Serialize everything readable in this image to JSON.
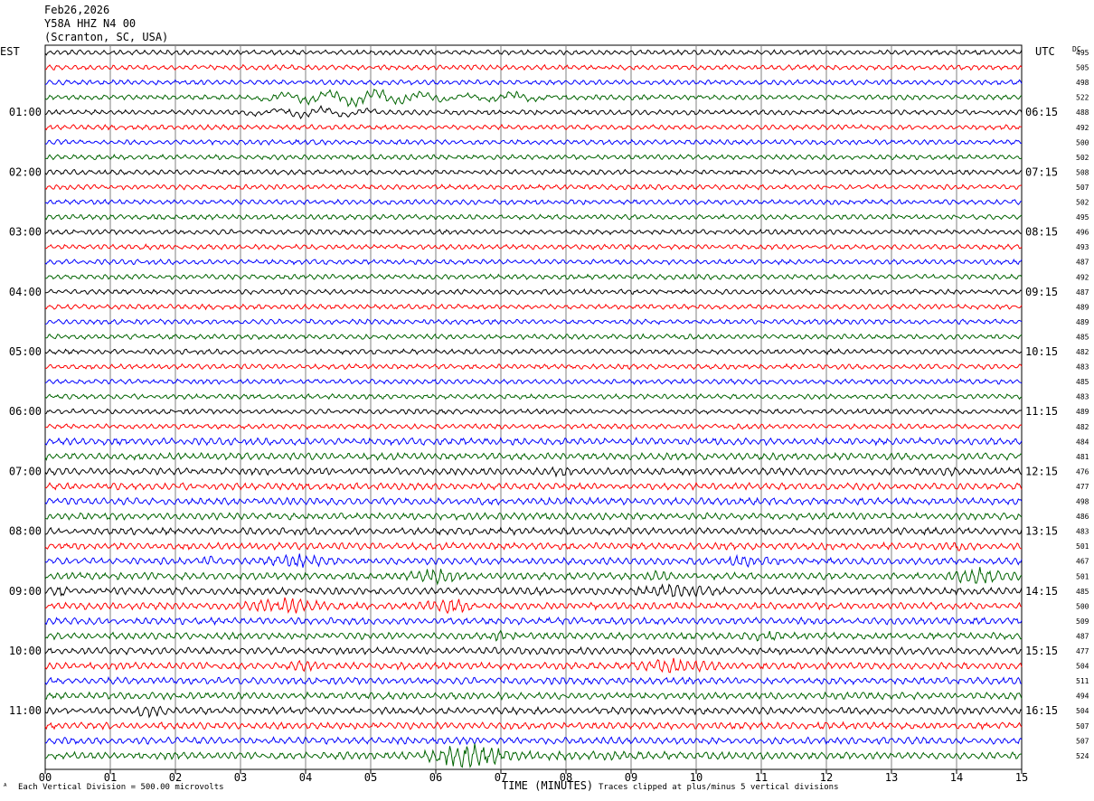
{
  "header": {
    "date": "Feb26,2026",
    "station": "Y58A HHZ N4 00",
    "location": "(Scranton, SC, USA)"
  },
  "footer": {
    "scale_note": "Each Vertical Division =  500.00 microvolts",
    "clip_note": "Traces clipped at plus/minus 5 vertical divisions",
    "mark": "ᴬ"
  },
  "chart_data": {
    "type": "line",
    "title": "",
    "xlabel": "TIME (MINUTES)",
    "ylabel_left": "EST",
    "ylabel_right": "UTC",
    "dc_label": "DC",
    "xlim": [
      0,
      15
    ],
    "x_ticks": [
      "00",
      "01",
      "02",
      "03",
      "04",
      "05",
      "06",
      "07",
      "08",
      "09",
      "10",
      "11",
      "12",
      "13",
      "14",
      "15"
    ],
    "grid": true,
    "trace_colors": [
      "#000000",
      "#ff0000",
      "#0000ff",
      "#006400"
    ],
    "est_labels": [
      "01:00",
      "02:00",
      "03:00",
      "04:00",
      "05:00",
      "06:00",
      "07:00",
      "08:00",
      "09:00",
      "10:00",
      "11:00"
    ],
    "utc_labels": [
      "06:15",
      "07:15",
      "08:15",
      "09:15",
      "10:15",
      "11:15",
      "12:15",
      "13:15",
      "14:15",
      "15:15",
      "16:15"
    ],
    "dc_offsets": [
      495,
      505,
      498,
      522,
      488,
      492,
      500,
      502,
      508,
      507,
      502,
      495,
      496,
      493,
      487,
      492,
      487,
      489,
      489,
      485,
      482,
      483,
      485,
      483,
      489,
      482,
      484,
      481,
      476,
      477,
      498,
      486,
      483,
      501,
      467,
      501,
      485,
      500,
      509,
      487,
      477,
      504,
      511,
      494,
      504,
      507,
      507,
      524
    ]
  }
}
